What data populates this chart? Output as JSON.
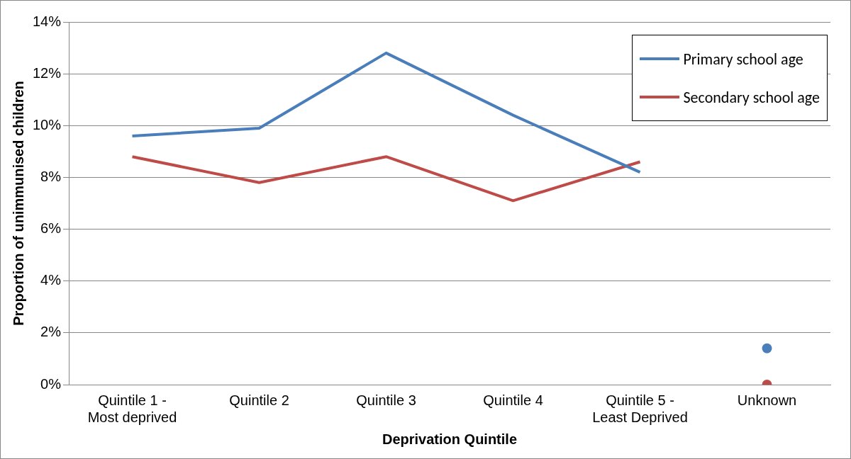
{
  "chart_data": {
    "type": "line",
    "xlabel": "Deprivation Quintile",
    "ylabel": "Proportion of unimmunised children",
    "categories": [
      "Quintile 1 - Most deprived",
      "Quintile 2",
      "Quintile 3",
      "Quintile 4",
      "Quintile 5 - Least Deprived",
      "Unknown"
    ],
    "series": [
      {
        "name": "Primary school age",
        "color": "#4a7ebb",
        "values": [
          9.6,
          9.9,
          12.8,
          10.4,
          8.2,
          null
        ],
        "marker": "none"
      },
      {
        "name": "Secondary school age",
        "color": "#be4b48",
        "values": [
          8.8,
          7.8,
          8.8,
          7.1,
          8.6,
          null
        ],
        "marker": "none"
      },
      {
        "type": "scatter",
        "color": "#4a7ebb",
        "x": [
          "Unknown"
        ],
        "values": [
          1.4
        ],
        "marker": "circle"
      },
      {
        "type": "scatter",
        "color": "#be4b48",
        "x": [
          "Unknown"
        ],
        "values": [
          0
        ],
        "marker": "circle"
      }
    ],
    "ylim": [
      0,
      14
    ],
    "yticks": [
      {
        "value": 0,
        "label": "0%"
      },
      {
        "value": 2,
        "label": "2%"
      },
      {
        "value": 4,
        "label": "4%"
      },
      {
        "value": 6,
        "label": "6%"
      },
      {
        "value": 8,
        "label": "8%"
      },
      {
        "value": 10,
        "label": "10%"
      },
      {
        "value": 12,
        "label": "12%"
      },
      {
        "value": 14,
        "label": "14%"
      }
    ],
    "grid": "y",
    "legend": "top right"
  }
}
